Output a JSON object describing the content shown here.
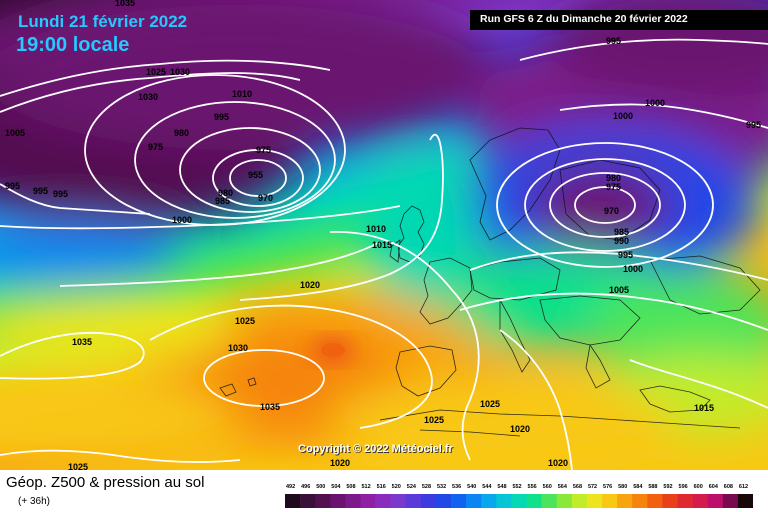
{
  "header": {
    "date_label": "Lundi 21 février 2022",
    "time_label": "19:00 locale",
    "run_label": "Run GFS 6 Z du Dimanche 20 février 2022"
  },
  "footer": {
    "title": "Géop. Z500 & pression au sol",
    "subtitle": "(+ 36h)",
    "copyright": "Copyright © 2022 Météociel.fr"
  },
  "colorbar": {
    "ticks": [
      "492",
      "496",
      "500",
      "504",
      "508",
      "512",
      "516",
      "520",
      "524",
      "528",
      "532",
      "536",
      "540",
      "544",
      "548",
      "552",
      "556",
      "560",
      "564",
      "568",
      "572",
      "576",
      "580",
      "584",
      "588",
      "592",
      "596",
      "600",
      "604",
      "608",
      "612"
    ],
    "colors": [
      "#1e0a1e",
      "#3a0f3a",
      "#52104f",
      "#6a1470",
      "#7d1a8a",
      "#8f20a3",
      "#8a2bbd",
      "#7a38cc",
      "#5a3ad8",
      "#3c3be0",
      "#2047e8",
      "#0f63f0",
      "#0a86f2",
      "#08a8ec",
      "#06c6d6",
      "#05d8b4",
      "#0fe08a",
      "#4ce45a",
      "#8ae83a",
      "#c2ec2a",
      "#eee41e",
      "#f8c814",
      "#f8a40e",
      "#f6840c",
      "#f0600e",
      "#e8401a",
      "#e02830",
      "#d41c4c",
      "#bc0f6a",
      "#7a0a50",
      "#180808"
    ]
  },
  "isobar_labels": [
    "1035",
    "1020",
    "1025",
    "1030",
    "1030",
    "1010",
    "995",
    "980",
    "975",
    "975",
    "955",
    "970",
    "980",
    "985",
    "1000",
    "1005",
    "995",
    "995",
    "995",
    "1010",
    "1015",
    "1020",
    "1025",
    "1035",
    "1030",
    "1035",
    "1025",
    "1025",
    "1020",
    "1020",
    "1020",
    "1025",
    "995",
    "1000",
    "1000",
    "995",
    "980",
    "975",
    "970",
    "985",
    "990",
    "995",
    "1000",
    "1005",
    "1015"
  ]
}
